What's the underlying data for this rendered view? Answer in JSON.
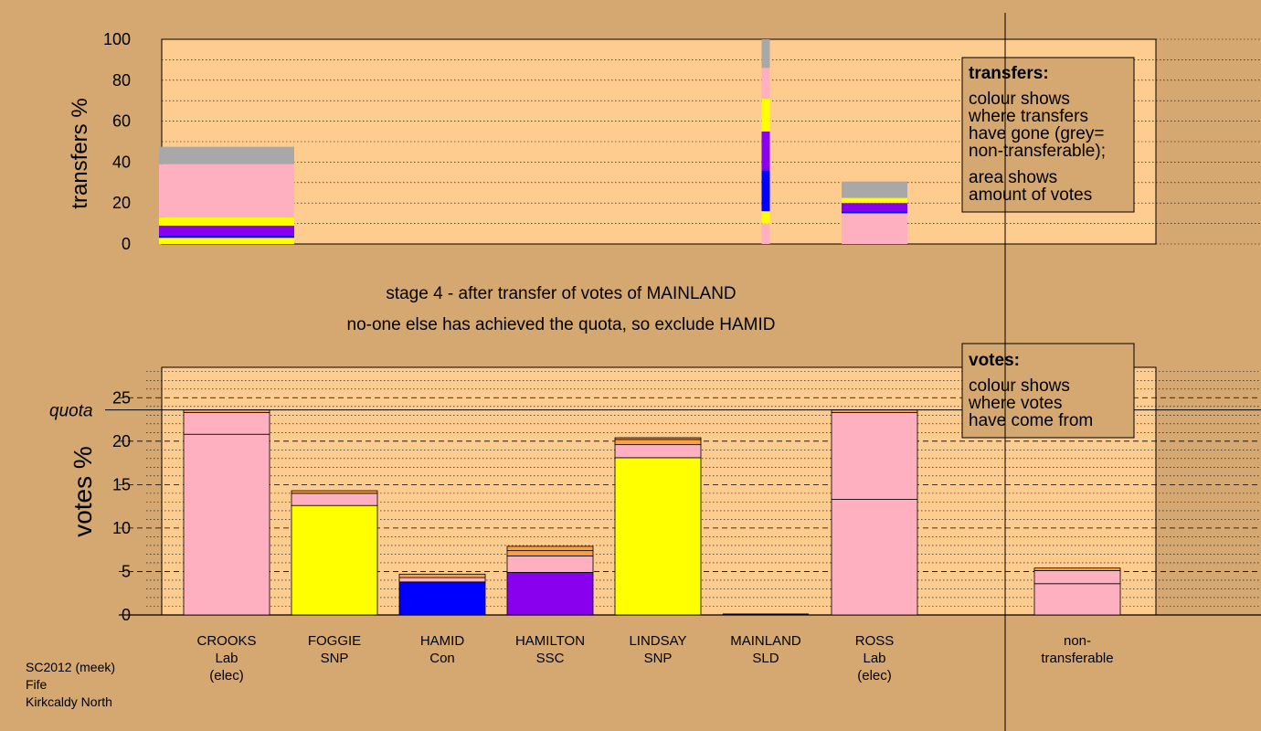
{
  "meta": {
    "source_line1": "SC2012 (meek)",
    "source_line2": "Fife",
    "source_line3": "Kirkcaldy North"
  },
  "captions": {
    "line1": "stage 4 - after transfer of votes of MAINLAND",
    "line2": "no-one else has achieved the quota, so exclude HAMID"
  },
  "legend_transfers": {
    "title": "transfers:",
    "lines": [
      "colour shows",
      "where transfers",
      "have gone (grey=",
      "non-transferable);"
    ],
    "lines2": [
      "area shows",
      "amount of votes"
    ]
  },
  "legend_votes": {
    "title": "votes:",
    "lines": [
      "colour shows",
      "where votes",
      "have come from"
    ]
  },
  "colors": {
    "Lab": "#ffb0c0",
    "SNP": "#ffff00",
    "Con": "#0000ff",
    "SSC": "#8800ee",
    "SLD": "#ffa040",
    "nontransferable": "#a8a8a8",
    "panel": "#ffcc90",
    "background": "#d4a870"
  },
  "chart_data": [
    {
      "type": "bar",
      "name": "transfers",
      "ylabel": "transfers %",
      "ylim": [
        0,
        100
      ],
      "yticks": [
        0,
        20,
        40,
        60,
        80,
        100
      ],
      "bars": [
        {
          "candidate": "CROOKS",
          "segments": [
            {
              "color": "SNP",
              "from": 0,
              "to": 3
            },
            {
              "color": "Con",
              "from": 3,
              "to": 4
            },
            {
              "color": "SSC",
              "from": 4,
              "to": 9
            },
            {
              "color": "SNP",
              "from": 9,
              "to": 13
            },
            {
              "color": "Lab",
              "from": 13,
              "to": 39
            },
            {
              "color": "nontransferable",
              "from": 39,
              "to": 47.5
            }
          ]
        },
        {
          "candidate": "MAINLAND",
          "segments": [
            {
              "color": "Lab",
              "from": 0,
              "to": 10
            },
            {
              "color": "SNP",
              "from": 10,
              "to": 16
            },
            {
              "color": "Con",
              "from": 16,
              "to": 36
            },
            {
              "color": "SSC",
              "from": 36,
              "to": 55
            },
            {
              "color": "SNP",
              "from": 55,
              "to": 71
            },
            {
              "color": "Lab",
              "from": 71,
              "to": 86
            },
            {
              "color": "nontransferable",
              "from": 86,
              "to": 100
            }
          ]
        },
        {
          "candidate": "ROSS",
          "segments": [
            {
              "color": "Lab",
              "from": 0,
              "to": 15
            },
            {
              "color": "Con",
              "from": 15,
              "to": 16
            },
            {
              "color": "SSC",
              "from": 16,
              "to": 20
            },
            {
              "color": "SNP",
              "from": 20,
              "to": 22.5
            },
            {
              "color": "nontransferable",
              "from": 22.5,
              "to": 30.5
            }
          ]
        }
      ]
    },
    {
      "type": "bar",
      "name": "votes",
      "ylabel": "votes %",
      "ylim": [
        0,
        28.5
      ],
      "yticks": [
        0,
        5,
        10,
        15,
        20,
        25
      ],
      "quota": 23.6,
      "quota_label": "quota",
      "categories": [
        {
          "name": "CROOKS",
          "party": "Lab",
          "elected": "(elec)"
        },
        {
          "name": "FOGGIE",
          "party": "SNP",
          "elected": ""
        },
        {
          "name": "HAMID",
          "party": "Con",
          "elected": ""
        },
        {
          "name": "HAMILTON",
          "party": "SSC",
          "elected": ""
        },
        {
          "name": "LINDSAY",
          "party": "SNP",
          "elected": ""
        },
        {
          "name": "MAINLAND",
          "party": "SLD",
          "elected": ""
        },
        {
          "name": "ROSS",
          "party": "Lab",
          "elected": "(elec)"
        },
        {
          "name": "non-",
          "party": "transferable",
          "elected": ""
        }
      ],
      "bars": [
        {
          "candidate": "CROOKS",
          "segments": [
            {
              "color": "Lab",
              "value": 20.8
            },
            {
              "color": "Lab",
              "value": 2.5
            },
            {
              "color": "SLD",
              "value": 0.3
            }
          ]
        },
        {
          "candidate": "FOGGIE",
          "segments": [
            {
              "color": "SNP",
              "value": 12.6
            },
            {
              "color": "Lab",
              "value": 1.4
            },
            {
              "color": "SLD",
              "value": 0.3
            }
          ]
        },
        {
          "candidate": "HAMID",
          "segments": [
            {
              "color": "Con",
              "value": 3.8
            },
            {
              "color": "Lab",
              "value": 0.5
            },
            {
              "color": "SLD",
              "value": 0.4
            }
          ]
        },
        {
          "candidate": "HAMILTON",
          "segments": [
            {
              "color": "SSC",
              "value": 4.9
            },
            {
              "color": "Lab",
              "value": 1.9
            },
            {
              "color": "SLD",
              "value": 0.6
            },
            {
              "color": "SLD",
              "value": 0.5
            }
          ]
        },
        {
          "candidate": "LINDSAY",
          "segments": [
            {
              "color": "SNP",
              "value": 18.1
            },
            {
              "color": "Lab",
              "value": 1.5
            },
            {
              "color": "SLD",
              "value": 0.6
            },
            {
              "color": "SLD",
              "value": 0.2
            }
          ]
        },
        {
          "candidate": "MAINLAND",
          "segments": []
        },
        {
          "candidate": "ROSS",
          "segments": [
            {
              "color": "Lab",
              "value": 13.3
            },
            {
              "color": "Lab",
              "value": 10.0
            },
            {
              "color": "SLD",
              "value": 0.3
            }
          ]
        },
        {
          "candidate": "non-transferable",
          "segments": [
            {
              "color": "Lab",
              "value": 3.6
            },
            {
              "color": "Lab",
              "value": 1.5
            },
            {
              "color": "SLD",
              "value": 0.3
            }
          ]
        }
      ]
    }
  ]
}
